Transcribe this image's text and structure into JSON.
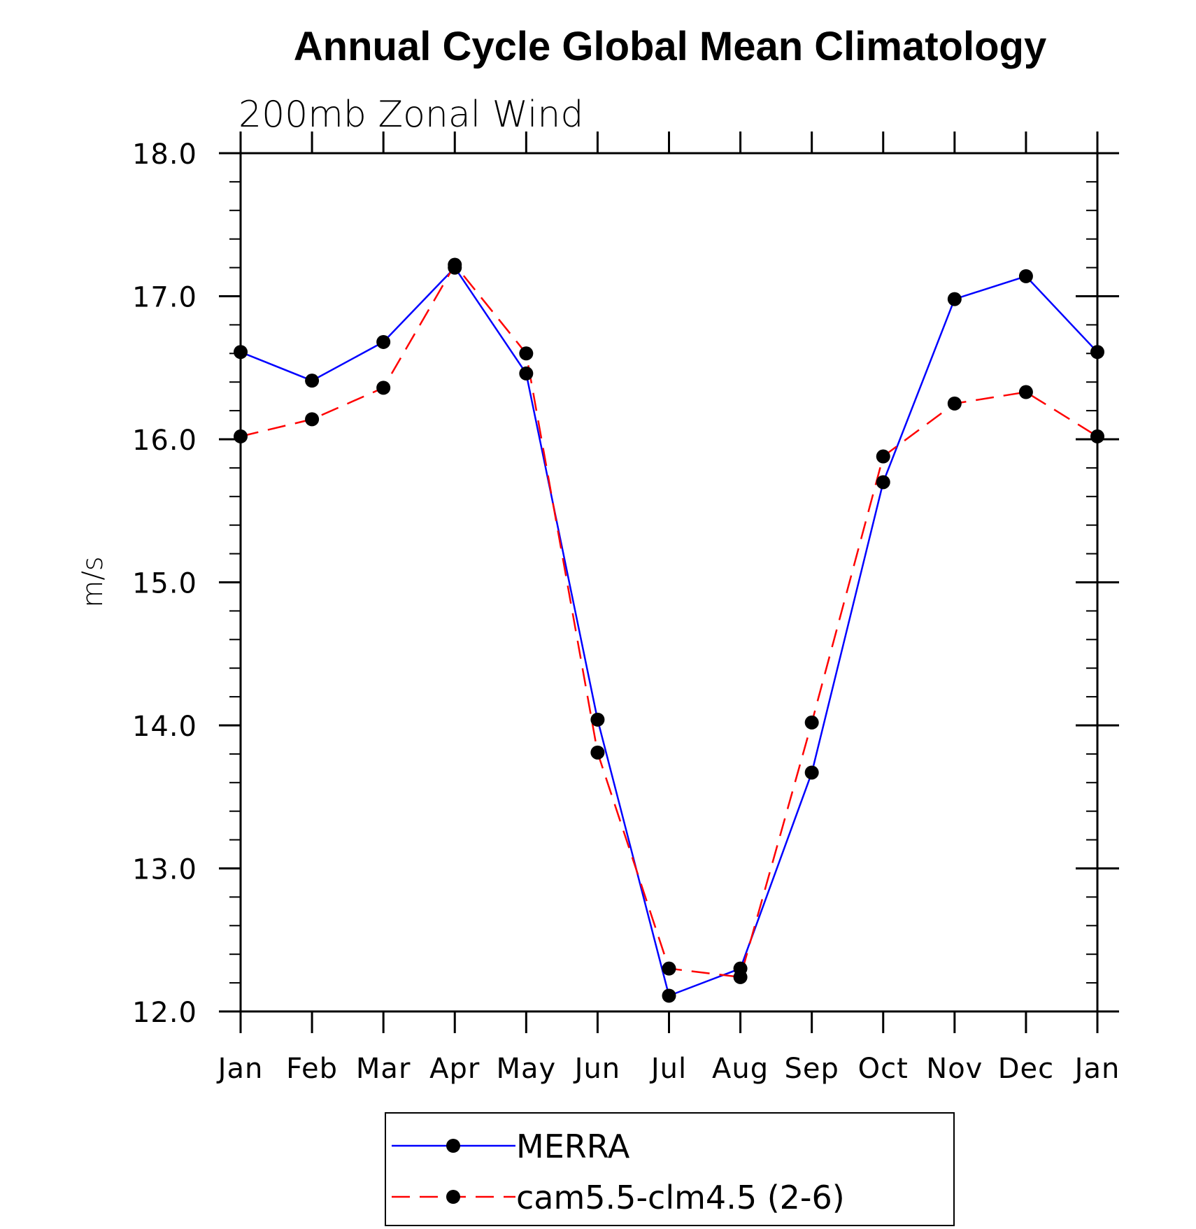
{
  "chart_data": {
    "type": "line",
    "title": "Annual Cycle Global Mean Climatology",
    "subtitle": "200mb Zonal Wind",
    "ylabel": "m/s",
    "xlabel": "",
    "categories": [
      "Jan",
      "Feb",
      "Mar",
      "Apr",
      "May",
      "Jun",
      "Jul",
      "Aug",
      "Sep",
      "Oct",
      "Nov",
      "Dec",
      "Jan"
    ],
    "ylim": [
      12.0,
      18.0
    ],
    "yticks": [
      "12.0",
      "13.0",
      "14.0",
      "15.0",
      "16.0",
      "17.0",
      "18.0"
    ],
    "grid": false,
    "legend_position": "bottom",
    "series": [
      {
        "name": "MERRA",
        "color": "#0000ff",
        "dash": "solid",
        "marker": "filled-circle",
        "values": [
          16.61,
          16.41,
          16.68,
          17.2,
          16.46,
          14.04,
          12.11,
          12.3,
          13.67,
          15.7,
          16.98,
          17.14,
          16.61
        ]
      },
      {
        "name": "cam5.5-clm4.5 (2-6)",
        "color": "#ff0000",
        "dash": "dashed",
        "marker": "filled-circle",
        "values": [
          16.02,
          16.14,
          16.36,
          17.22,
          16.6,
          13.81,
          12.3,
          12.24,
          14.02,
          15.88,
          16.25,
          16.33,
          16.02
        ]
      }
    ]
  }
}
